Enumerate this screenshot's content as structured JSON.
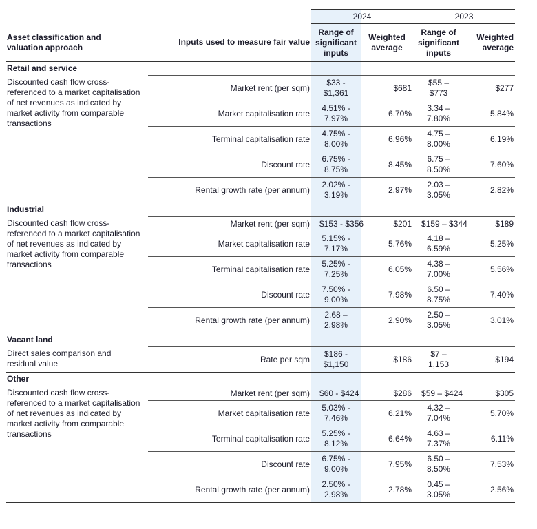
{
  "header": {
    "year_2024": "2024",
    "year_2023": "2023",
    "columns": [
      "Asset classification and valuation approach",
      "Inputs used to measure fair value",
      "Range of significant inputs",
      "Weighted average",
      "Range of significant inputs",
      "Weighted average"
    ]
  },
  "sections": [
    {
      "title": "Retail and service",
      "approach": "Discounted cash flow cross-referenced to a market capitalisation of net revenues as indicated by market activity from comparable transactions",
      "rows": [
        [
          "Market rent (per sqm)",
          "$33 - $1,361",
          "$681",
          "$55 – $773",
          "$277"
        ],
        [
          "Market capitalisation rate",
          "4.51% - 7.97%",
          "6.70%",
          "3.34 – 7.80%",
          "5.84%"
        ],
        [
          "Terminal capitalisation rate",
          "4.75% - 8.00%",
          "6.96%",
          "4.75 – 8.00%",
          "6.19%"
        ],
        [
          "Discount rate",
          "6.75% - 8.75%",
          "8.45%",
          "6.75 – 8.50%",
          "7.60%"
        ],
        [
          "Rental growth rate (per annum)",
          "2.02% - 3.19%",
          "2.97%",
          "2.03 – 3.05%",
          "2.82%"
        ]
      ]
    },
    {
      "title": "Industrial",
      "approach": "Discounted cash flow cross-referenced to a market capitalisation of net revenues as indicated by market activity from comparable transactions",
      "rows": [
        [
          "Market rent (per sqm)",
          "$153 - $356",
          "$201",
          "$159 – $344",
          "$189"
        ],
        [
          "Market capitalisation rate",
          "5.15% - 7.17%",
          "5.76%",
          "4.18 – 6.59%",
          "5.25%"
        ],
        [
          "Terminal capitalisation rate",
          "5.25% - 7.25%",
          "6.05%",
          "4.38 – 7.00%",
          "5.56%"
        ],
        [
          "Discount rate",
          "7.50% - 9.00%",
          "7.98%",
          "6.50 – 8.75%",
          "7.40%"
        ],
        [
          "Rental growth rate (per annum)",
          "2.68 – 2.98%",
          "2.90%",
          "2.50 – 3.05%",
          "3.01%"
        ]
      ]
    },
    {
      "title": "Vacant land",
      "approach": "Direct sales comparison and residual value",
      "rows": [
        [
          "Rate per sqm",
          "$186 - $1,150",
          "$186",
          "$7 – 1,153",
          "$194"
        ]
      ]
    },
    {
      "title": "Other",
      "approach": "Discounted cash flow cross-referenced to a market capitalisation of net revenues as indicated by market activity from comparable transactions",
      "rows": [
        [
          "Market rent (per sqm)",
          "$60 - $424",
          "$286",
          "$59 – $424",
          "$305"
        ],
        [
          "Market capitalisation rate",
          "5.03% - 7.46%",
          "6.21%",
          "4.32 – 7.04%",
          "5.70%"
        ],
        [
          "Terminal capitalisation rate",
          "5.25% - 8.12%",
          "6.64%",
          "4.63 – 7.37%",
          "6.11%"
        ],
        [
          "Discount rate",
          "6.75% - 9.00%",
          "7.95%",
          "6.50 – 8.50%",
          "7.53%"
        ],
        [
          "Rental growth rate (per annum)",
          "2.50% - 2.98%",
          "2.78%",
          "0.45 – 3.05%",
          "2.56%"
        ]
      ]
    }
  ]
}
